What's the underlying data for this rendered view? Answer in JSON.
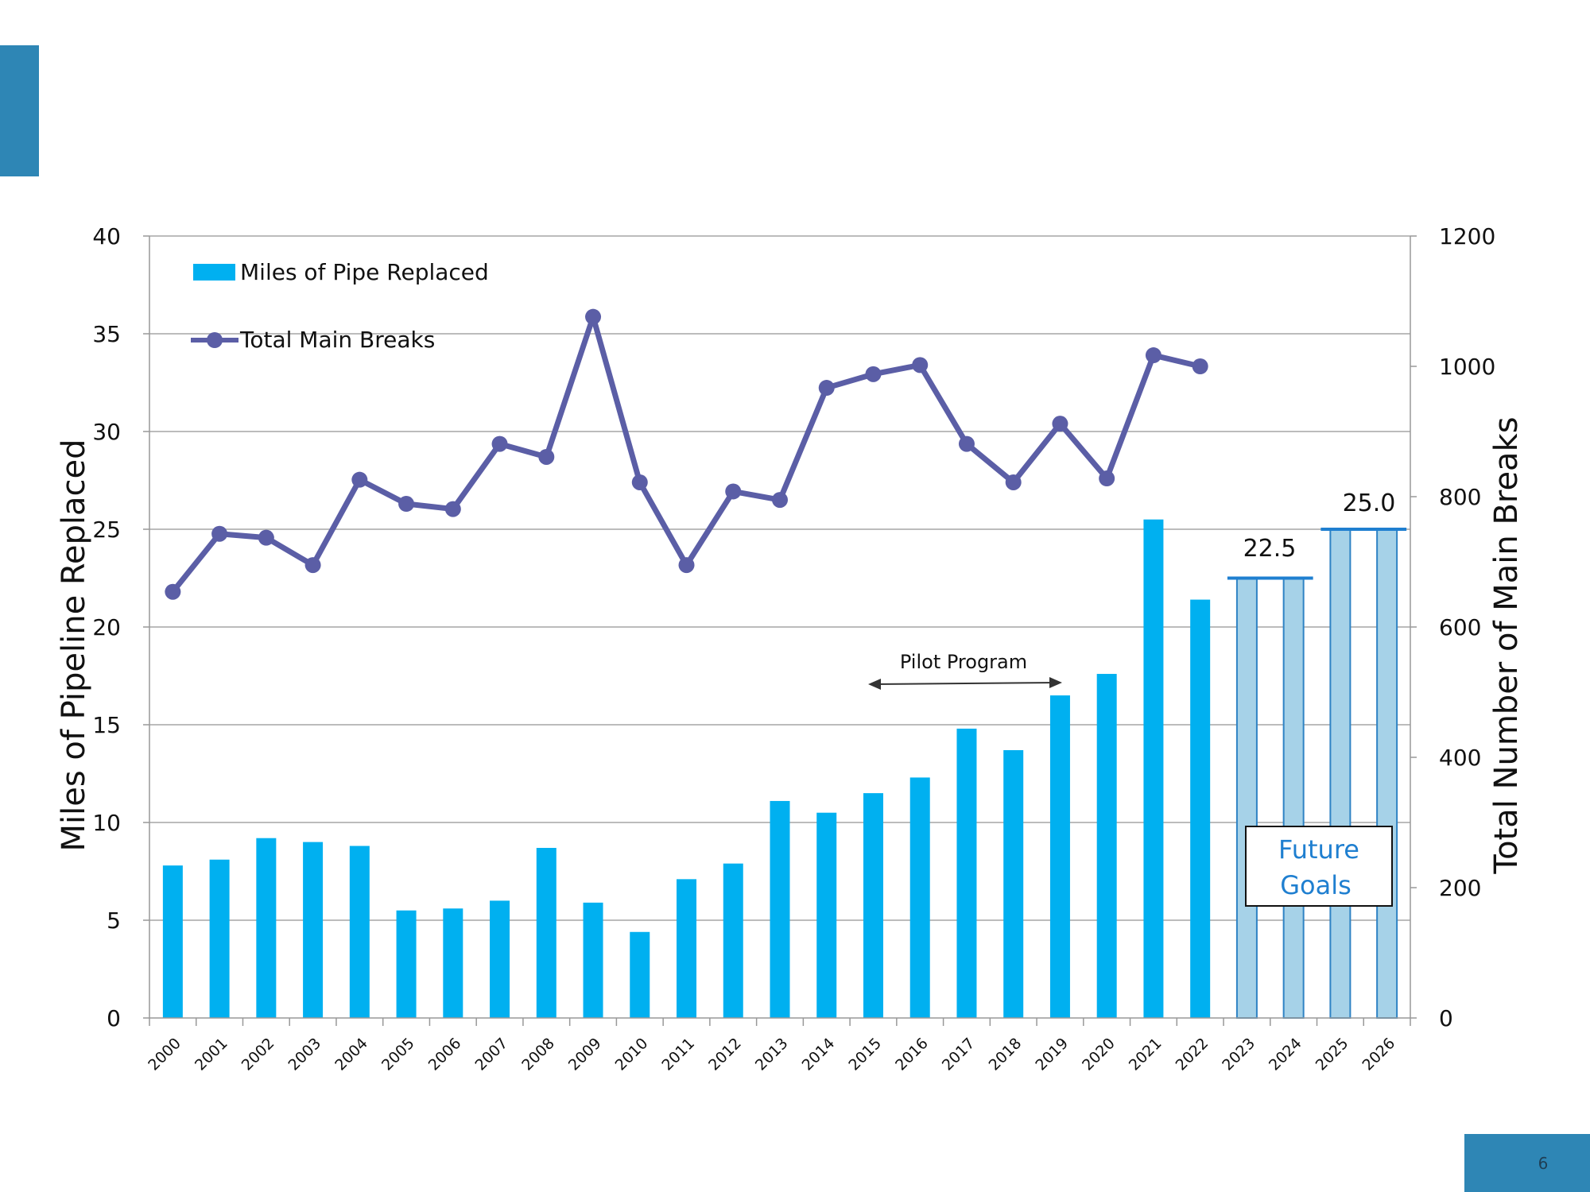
{
  "page": {
    "number": "6"
  },
  "colors": {
    "accent": "#2e86b5",
    "bar": "#00b0f0",
    "future_bar": "#a6d2e8",
    "future_bar_border": "#2f83c4",
    "line": "#5b5ea6",
    "goal_line": "#1f7fd0"
  },
  "chart_data": {
    "type": "bar",
    "categories": [
      "2000",
      "2001",
      "2002",
      "2003",
      "2004",
      "2005",
      "2006",
      "2007",
      "2008",
      "2009",
      "2010",
      "2011",
      "2012",
      "2013",
      "2014",
      "2015",
      "2016",
      "2017",
      "2018",
      "2019",
      "2020",
      "2021",
      "2022",
      "2023",
      "2024",
      "2025",
      "2026"
    ],
    "series": [
      {
        "name": "Miles of Pipe Replaced",
        "type": "bar",
        "axis": "left",
        "values": [
          7.8,
          8.1,
          9.2,
          9.0,
          8.8,
          5.5,
          5.6,
          6.0,
          8.7,
          5.9,
          4.4,
          7.1,
          7.9,
          11.1,
          10.5,
          11.5,
          12.3,
          14.8,
          13.7,
          16.5,
          17.6,
          25.5,
          21.4,
          null,
          null,
          null,
          null
        ]
      },
      {
        "name": "Total Main Breaks",
        "type": "line",
        "axis": "right",
        "values": [
          654,
          743,
          737,
          695,
          826,
          789,
          781,
          881,
          861,
          1076,
          822,
          695,
          808,
          795,
          967,
          988,
          1002,
          881,
          822,
          912,
          828,
          1017,
          1000,
          null,
          null,
          null,
          null
        ]
      }
    ],
    "future_goals": {
      "label_lines": [
        "Future",
        "Goals"
      ],
      "values": [
        22.5,
        22.5,
        25.0,
        25.0
      ],
      "goal_labels": [
        "22.5",
        "25.0"
      ]
    },
    "annotation": {
      "text": "Pilot Program",
      "from": "2015",
      "to": "2019"
    },
    "ylabel": "Miles of Pipeline Replaced",
    "y2label": "Total Number of Main Breaks",
    "ylim": [
      0,
      40
    ],
    "y2lim": [
      0,
      1200
    ],
    "yticks": [
      "0",
      "5",
      "10",
      "15",
      "20",
      "25",
      "30",
      "35",
      "40"
    ],
    "y2ticks": [
      "0",
      "200",
      "400",
      "600",
      "800",
      "1000",
      "1200"
    ],
    "grid": true,
    "legend": {
      "position": "top-left",
      "entries": [
        "Miles of Pipe Replaced",
        "Total Main Breaks"
      ]
    }
  }
}
